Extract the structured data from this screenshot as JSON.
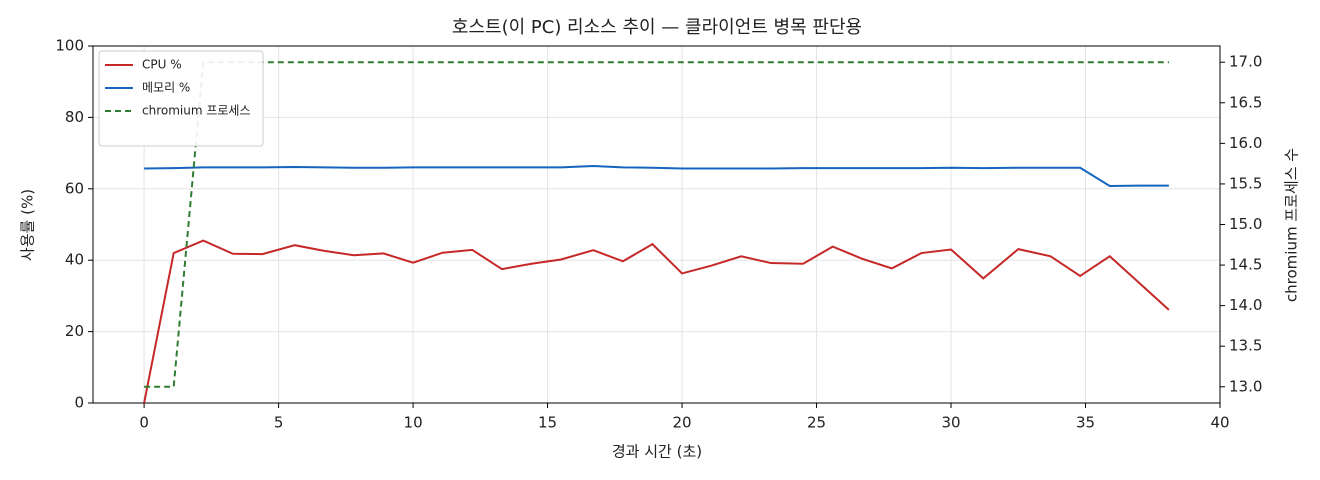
{
  "chart_data": {
    "type": "line",
    "title": "호스트(이 PC) 리소스 추이 — 클라이언트 병목 판단용",
    "xlabel": "경과 시간 (초)",
    "ylabel": "사용률 (%)",
    "y2label": "chromium 프로세스 수",
    "x": [
      0,
      1.1,
      2.2,
      3.3,
      4.4,
      5.6,
      6.7,
      7.8,
      8.9,
      10.0,
      11.1,
      12.2,
      13.3,
      14.4,
      15.5,
      16.7,
      17.8,
      18.9,
      20.0,
      21.1,
      22.2,
      23.3,
      24.5,
      25.6,
      26.7,
      27.8,
      28.9,
      30.0,
      31.2,
      32.5,
      33.7,
      34.8,
      35.9,
      37.0,
      38.1
    ],
    "series": [
      {
        "name": "CPU %",
        "color": "#c62828",
        "linestyle": "solid",
        "values": [
          0,
          42,
          45.5,
          41.8,
          41.7,
          44.2,
          42.6,
          41.4,
          41.9,
          39.3,
          42.1,
          42.9,
          37.5,
          39,
          40.2,
          42.8,
          39.7,
          44.5,
          36.3,
          38.5,
          41.1,
          39.2,
          39,
          43.8,
          40.4,
          37.7,
          42,
          43,
          34.9,
          43.1,
          41.1,
          35.6,
          41.1,
          33.6,
          26.1
        ]
      },
      {
        "name": "메모리 %",
        "color": "#1565c0",
        "linestyle": "solid",
        "values": [
          65.7,
          65.8,
          66,
          66,
          66,
          66.1,
          66,
          65.9,
          65.9,
          66,
          66,
          66,
          66,
          66,
          66,
          66.4,
          66,
          65.9,
          65.7,
          65.7,
          65.7,
          65.7,
          65.8,
          65.8,
          65.8,
          65.8,
          65.8,
          65.9,
          65.8,
          65.9,
          65.9,
          65.9,
          60.8,
          60.9,
          60.9
        ]
      },
      {
        "name": "chromium 프로세스",
        "color": "#2e7d32",
        "linestyle": "dashed",
        "axis": "y2",
        "values": [
          13,
          13,
          17,
          17,
          17,
          17,
          17,
          17,
          17,
          17,
          17,
          17,
          17,
          17,
          17,
          17,
          17,
          17,
          17,
          17,
          17,
          17,
          17,
          17,
          17,
          17,
          17,
          17,
          17,
          17,
          17,
          17,
          17,
          17,
          17
        ]
      }
    ],
    "xlim": [
      -1.9,
      40
    ],
    "xticks": [
      0,
      5,
      10,
      15,
      20,
      25,
      30,
      35,
      40
    ],
    "ylim": [
      0,
      100
    ],
    "yticks": [
      0,
      20,
      40,
      60,
      80,
      100
    ],
    "y2lim": [
      12.8,
      17.2
    ],
    "y2ticks": [
      {
        "value": 13,
        "label": "13.0"
      },
      {
        "value": 13.5,
        "label": "13.5"
      },
      {
        "value": 14,
        "label": "14.0"
      },
      {
        "value": 14.5,
        "label": "14.5"
      },
      {
        "value": 15,
        "label": "15.0"
      },
      {
        "value": 15.5,
        "label": "15.5"
      },
      {
        "value": 16,
        "label": "16.0"
      },
      {
        "value": 16.5,
        "label": "16.5"
      },
      {
        "value": 17,
        "label": "17.0"
      }
    ],
    "grid": true,
    "legend": "upper-left"
  }
}
